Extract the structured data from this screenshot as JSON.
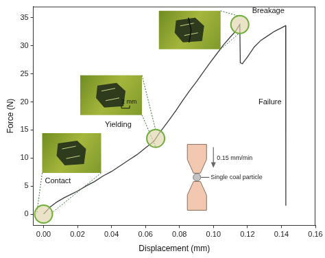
{
  "chart_data": {
    "type": "line",
    "x_label": "Displacement (mm)",
    "y_label": "Force (N)",
    "x": [
      0,
      0.004,
      0.008,
      0.012,
      0.016,
      0.02,
      0.025,
      0.03,
      0.035,
      0.04,
      0.045,
      0.05,
      0.055,
      0.06,
      0.065,
      0.068,
      0.07,
      0.074,
      0.078,
      0.082,
      0.086,
      0.09,
      0.094,
      0.098,
      0.102,
      0.106,
      0.11,
      0.113,
      0.1155,
      0.1158,
      0.117,
      0.12,
      0.124,
      0.128,
      0.132,
      0.136,
      0.14,
      0.1425,
      0.1426
    ],
    "values": [
      0,
      1.3,
      2.2,
      2.9,
      3.5,
      4.1,
      5.0,
      5.8,
      6.8,
      7.6,
      8.6,
      9.6,
      10.6,
      11.8,
      13,
      14.4,
      15.2,
      16.8,
      18.5,
      20.3,
      22,
      23.6,
      25.3,
      27,
      28.6,
      30.2,
      31.6,
      32.6,
      33.8,
      27,
      26.8,
      28,
      29.8,
      31,
      31.8,
      32.6,
      33.2,
      33.6,
      1.5
    ],
    "color": "#3a3a3a",
    "xlim": [
      -0.006,
      0.16
    ],
    "xticks": [
      {
        "value": 0,
        "label": "0.00"
      },
      0.02,
      0.04,
      0.06,
      0.08,
      {
        "value": 0.1,
        "label": "0.10"
      },
      0.12,
      0.14,
      0.16
    ],
    "ylim": [
      -2,
      37
    ],
    "yticks": [
      0,
      5,
      10,
      15,
      20,
      25,
      30,
      35
    ],
    "grid": false,
    "annotations": [
      {
        "text": "Contact",
        "x": 0,
        "y": 0
      },
      {
        "text": "Yielding",
        "x": 0.066,
        "y": 13.5
      },
      {
        "text": "Breakage",
        "x": 0.1155,
        "y": 33.8
      },
      {
        "text": "Failure",
        "x": 0.1425,
        "y": 20
      }
    ],
    "scale_bar": "2 mm",
    "inset": {
      "speed": "0.15 mm/min",
      "label": "Single coal particle"
    }
  }
}
